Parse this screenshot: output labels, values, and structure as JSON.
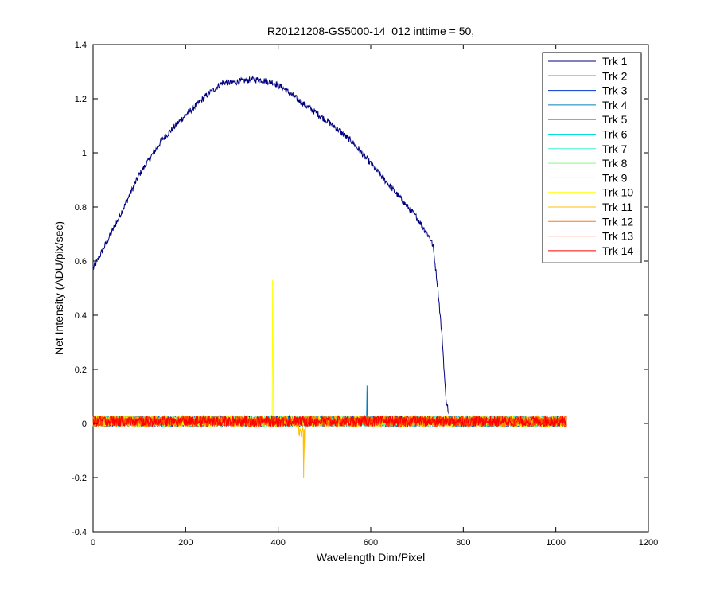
{
  "chart_data": {
    "type": "line",
    "title": "R20121208-GS5000-14_012 inttime = 50,",
    "xlabel": "Wavelength Dim/Pixel",
    "ylabel": "Net Intensity (ADU/pix/sec)",
    "xlim": [
      0,
      1200
    ],
    "ylim": [
      -0.4,
      1.4
    ],
    "xticks": [
      "0",
      "200",
      "400",
      "600",
      "800",
      "1000",
      "1200"
    ],
    "yticks": [
      "-0.4",
      "-0.2",
      "0",
      "0.2",
      "0.4",
      "0.6",
      "0.8",
      "1",
      "1.2",
      "1.4"
    ],
    "grid": false,
    "legend_position": "top-right",
    "x_points": 1024,
    "noise_amplitude": 0.02,
    "series": [
      {
        "name": "Trk 1",
        "color": "#00007f",
        "kind": "spectrum",
        "profile": [
          [
            0,
            0.57
          ],
          [
            50,
            0.74
          ],
          [
            100,
            0.92
          ],
          [
            150,
            1.05
          ],
          [
            200,
            1.14
          ],
          [
            250,
            1.22
          ],
          [
            280,
            1.26
          ],
          [
            300,
            1.26
          ],
          [
            340,
            1.27
          ],
          [
            360,
            1.27
          ],
          [
            390,
            1.26
          ],
          [
            410,
            1.24
          ],
          [
            440,
            1.2
          ],
          [
            480,
            1.15
          ],
          [
            520,
            1.1
          ],
          [
            560,
            1.04
          ],
          [
            600,
            0.96
          ],
          [
            650,
            0.86
          ],
          [
            700,
            0.76
          ],
          [
            730,
            0.68
          ],
          [
            735,
            0.65
          ],
          [
            745,
            0.5
          ],
          [
            755,
            0.3
          ],
          [
            762,
            0.1
          ],
          [
            770,
            0.02
          ],
          [
            790,
            0.0
          ],
          [
            1023,
            0.0
          ]
        ]
      },
      {
        "name": "Trk 2",
        "color": "#0000bf",
        "kind": "flat"
      },
      {
        "name": "Trk 3",
        "color": "#0038c8",
        "kind": "flat"
      },
      {
        "name": "Trk 4",
        "color": "#007fbf",
        "kind": "flat",
        "spikes": [
          [
            592,
            0.14
          ]
        ]
      },
      {
        "name": "Trk 5",
        "color": "#00b8d8",
        "kind": "flat"
      },
      {
        "name": "Trk 6",
        "color": "#00e0e0",
        "kind": "flat"
      },
      {
        "name": "Trk 7",
        "color": "#40f0d0",
        "kind": "flat"
      },
      {
        "name": "Trk 8",
        "color": "#7fff7f",
        "kind": "flat"
      },
      {
        "name": "Trk 9",
        "color": "#bfff3f",
        "kind": "flat"
      },
      {
        "name": "Trk 10",
        "color": "#ffff00",
        "kind": "flat",
        "spikes": [
          [
            388,
            0.53
          ],
          [
            389,
            0.3
          ]
        ]
      },
      {
        "name": "Trk 11",
        "color": "#ffbf00",
        "kind": "flat",
        "dips": [
          [
            450,
            -0.05
          ],
          [
            455,
            -0.2
          ],
          [
            458,
            -0.14
          ]
        ]
      },
      {
        "name": "Trk 12",
        "color": "#ff7f00",
        "kind": "flat"
      },
      {
        "name": "Trk 13",
        "color": "#ff3f00",
        "kind": "flat"
      },
      {
        "name": "Trk 14",
        "color": "#ff0000",
        "kind": "flat"
      }
    ]
  }
}
